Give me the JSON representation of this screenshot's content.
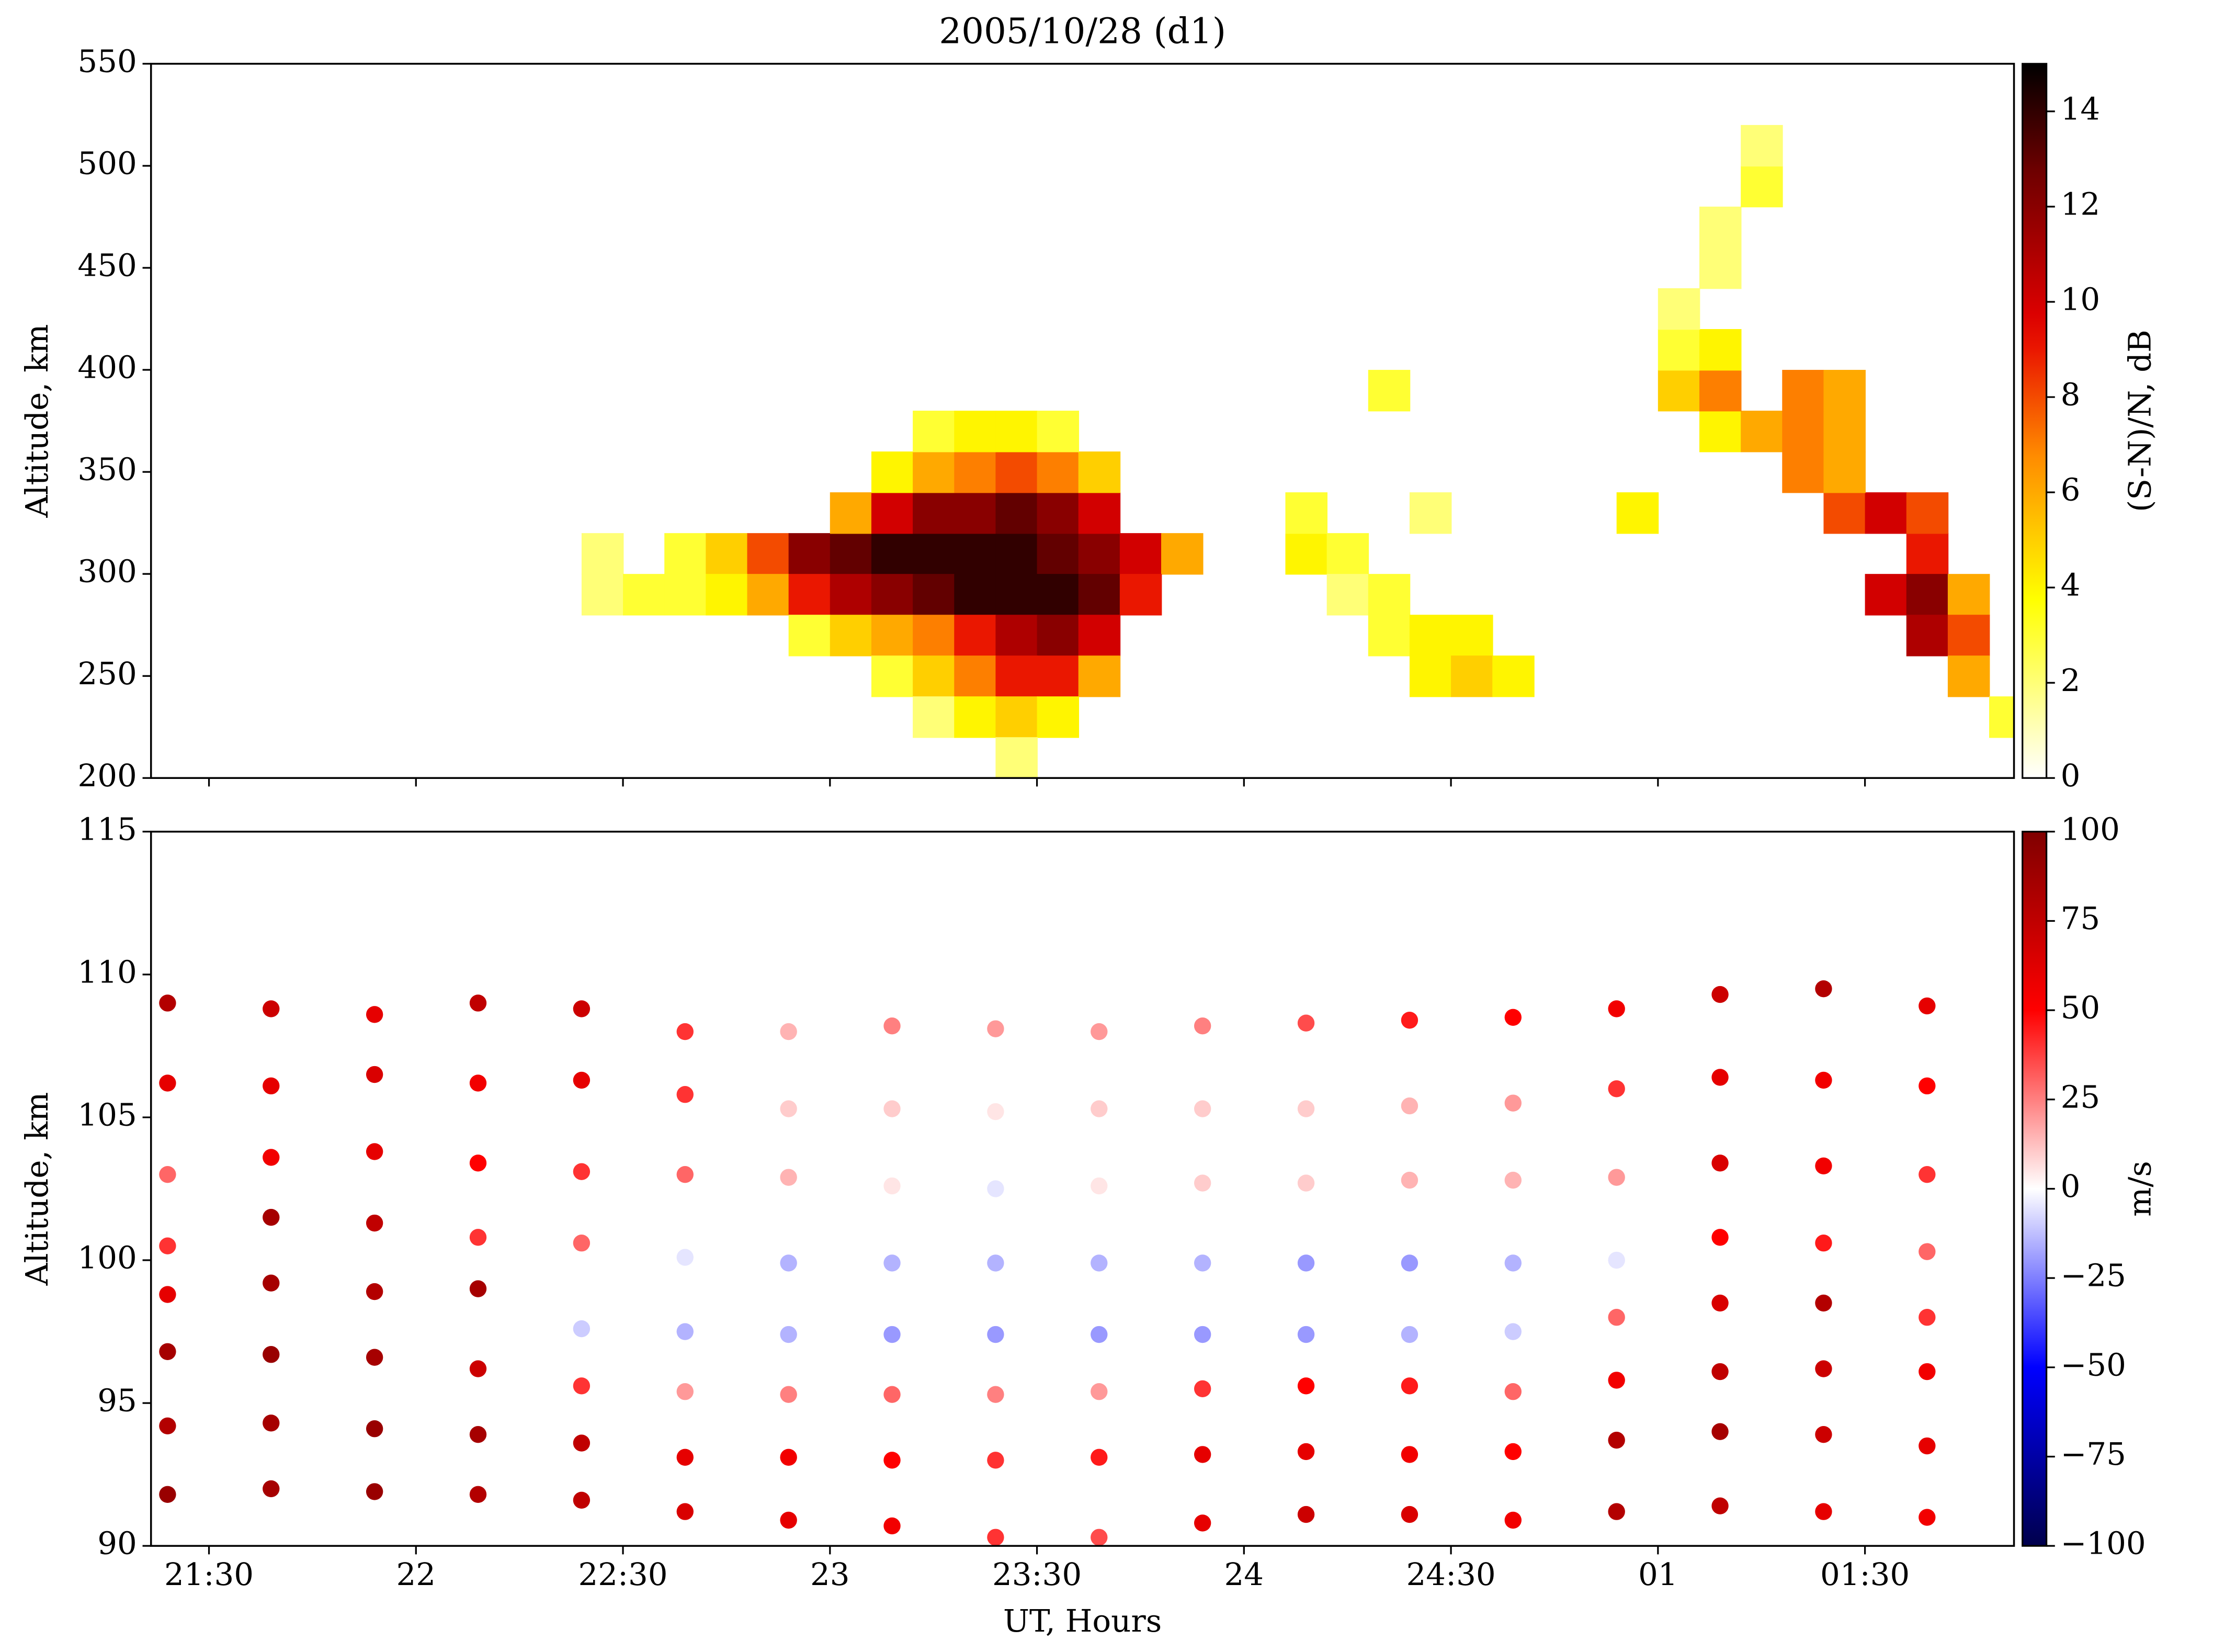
{
  "chart_data": [
    {
      "type": "heatmap",
      "title": "2005/10/28 (d1)",
      "ylabel": "Altitude, km",
      "xlim": [
        21.36,
        25.86
      ],
      "ylim": [
        200,
        550
      ],
      "yticks": [
        200,
        250,
        300,
        350,
        400,
        450,
        500,
        550
      ],
      "x": [
        22.4,
        22.6,
        22.7,
        22.8,
        22.9,
        23.0,
        23.1,
        23.2,
        23.3,
        23.4,
        23.5,
        23.6,
        23.7,
        23.8,
        24.1,
        24.2,
        25.6,
        22.4,
        22.5,
        22.6,
        22.7,
        22.8,
        22.9,
        23.0,
        23.1,
        23.2,
        23.3,
        23.4,
        23.5,
        23.6,
        23.7,
        24.2,
        24.3,
        25.5,
        25.6,
        25.7,
        23.0,
        23.1,
        23.2,
        23.3,
        23.4,
        23.5,
        23.6,
        24.1,
        24.4,
        24.9,
        25.4,
        25.5,
        25.6,
        23.1,
        23.2,
        23.3,
        23.4,
        23.5,
        23.6,
        25.3,
        25.4,
        23.2,
        23.3,
        23.4,
        23.5,
        25.1,
        25.2,
        25.3,
        25.4,
        22.9,
        23.0,
        23.1,
        23.2,
        23.3,
        23.4,
        23.5,
        23.6,
        24.3,
        24.4,
        24.5,
        25.6,
        25.7,
        23.1,
        23.2,
        23.3,
        23.4,
        23.5,
        23.6,
        24.4,
        24.5,
        24.6,
        25.7,
        23.2,
        23.3,
        23.4,
        23.5,
        25.8,
        23.4,
        24.3,
        25.0,
        25.1,
        25.3,
        25.4,
        25.0,
        25.1,
        25.0,
        25.1,
        25.1,
        25.2,
        25.2
      ],
      "y": [
        300,
        300,
        300,
        300,
        300,
        300,
        300,
        300,
        300,
        300,
        300,
        300,
        300,
        300,
        300,
        300,
        300,
        280,
        280,
        280,
        280,
        280,
        280,
        280,
        280,
        280,
        280,
        280,
        280,
        280,
        280,
        280,
        280,
        280,
        280,
        280,
        320,
        320,
        320,
        320,
        320,
        320,
        320,
        320,
        320,
        320,
        320,
        320,
        320,
        340,
        340,
        340,
        340,
        340,
        340,
        340,
        340,
        360,
        360,
        360,
        360,
        360,
        360,
        360,
        360,
        260,
        260,
        260,
        260,
        260,
        260,
        260,
        260,
        260,
        260,
        260,
        260,
        260,
        240,
        240,
        240,
        240,
        240,
        240,
        240,
        240,
        240,
        240,
        220,
        220,
        220,
        220,
        220,
        200,
        380,
        380,
        380,
        380,
        380,
        400,
        400,
        420,
        440,
        460,
        480,
        500
      ],
      "values": [
        2,
        3,
        5,
        8,
        12,
        13,
        14,
        14,
        14,
        14,
        13,
        12,
        10,
        6,
        4,
        3,
        9,
        2,
        3,
        3,
        4,
        6,
        9,
        11,
        12,
        13,
        14,
        14,
        14,
        13,
        9,
        2,
        3,
        10,
        12,
        6,
        6,
        10,
        12,
        12,
        13,
        12,
        10,
        3,
        2,
        4,
        8,
        10,
        8,
        4,
        6,
        7,
        8,
        7,
        5,
        7,
        6,
        3,
        4,
        4,
        3,
        4,
        6,
        7,
        6,
        3,
        5,
        6,
        7,
        9,
        11,
        12,
        10,
        3,
        4,
        4,
        11,
        8,
        3,
        5,
        7,
        9,
        9,
        6,
        4,
        5,
        4,
        6,
        2,
        4,
        5,
        4,
        3,
        2,
        3,
        5,
        7,
        7,
        6,
        3,
        4,
        2,
        2,
        2,
        3,
        2
      ],
      "colorbar": {
        "label": "(S-N)/N, dB",
        "lim": [
          0,
          15
        ],
        "ticks": [
          0,
          2,
          4,
          6,
          8,
          10,
          12,
          14
        ],
        "colormap": "hot_r"
      }
    },
    {
      "type": "scatter",
      "ylabel": "Altitude, km",
      "xlabel": "UT, Hours",
      "xlim": [
        21.36,
        25.86
      ],
      "ylim": [
        90,
        115
      ],
      "yticks": [
        90,
        95,
        100,
        105,
        110,
        115
      ],
      "xticks": [
        {
          "value": 21.5,
          "label": "21:30"
        },
        22,
        {
          "value": 22.5,
          "label": "22:30"
        },
        23,
        {
          "value": 23.5,
          "label": "23:30"
        },
        24,
        {
          "value": 24.5,
          "label": "24:30"
        },
        {
          "value": 25,
          "label": "01"
        },
        {
          "value": 25.5,
          "label": "01:30"
        }
      ],
      "x": [
        21.4,
        21.65,
        21.9,
        22.15,
        22.4,
        22.65,
        22.9,
        23.15,
        23.4,
        23.65,
        23.9,
        24.15,
        24.4,
        24.65,
        24.9,
        25.15,
        25.4,
        25.65,
        21.4,
        21.65,
        21.9,
        22.15,
        22.4,
        22.65,
        22.9,
        23.15,
        23.4,
        23.65,
        23.9,
        24.15,
        24.4,
        24.65,
        24.9,
        25.15,
        25.4,
        25.65,
        21.4,
        21.65,
        21.9,
        22.15,
        22.4,
        22.65,
        22.9,
        23.15,
        23.4,
        23.65,
        23.9,
        24.15,
        24.4,
        24.65,
        24.9,
        25.15,
        25.4,
        25.65,
        21.4,
        21.65,
        21.9,
        22.15,
        22.4,
        22.65,
        22.9,
        23.15,
        23.4,
        23.65,
        23.9,
        24.15,
        24.4,
        24.65,
        24.9,
        25.15,
        25.4,
        25.65,
        21.4,
        21.65,
        21.9,
        22.15,
        22.4,
        22.65,
        22.9,
        23.15,
        23.4,
        23.65,
        23.9,
        24.15,
        24.4,
        24.65,
        24.9,
        25.15,
        25.4,
        25.65,
        21.4,
        21.65,
        21.9,
        22.15,
        22.4,
        22.65,
        22.9,
        23.15,
        23.4,
        23.65,
        23.9,
        24.15,
        24.4,
        24.65,
        24.9,
        25.15,
        25.4,
        25.65,
        21.4,
        21.65,
        21.9,
        22.15,
        22.4,
        22.65,
        22.9,
        23.15,
        23.4,
        23.65,
        23.9,
        24.15,
        24.4,
        24.65,
        24.9,
        25.15,
        25.4,
        25.65,
        21.4,
        21.65,
        21.9,
        22.15,
        22.4,
        22.65,
        22.9,
        23.15,
        23.4,
        23.65,
        23.9,
        24.15,
        24.4,
        24.65,
        24.9,
        25.15,
        25.4,
        25.65
      ],
      "y": [
        109,
        108.8,
        108.6,
        109,
        108.8,
        108,
        108,
        108.2,
        108.1,
        108,
        108.2,
        108.3,
        108.4,
        108.5,
        108.8,
        109.3,
        109.5,
        108.9,
        106.2,
        106.1,
        106.5,
        106.2,
        106.3,
        105.8,
        105.3,
        105.3,
        105.2,
        105.3,
        105.3,
        105.3,
        105.4,
        105.5,
        106,
        106.4,
        106.3,
        106.1,
        103,
        103.6,
        103.8,
        103.4,
        103.1,
        103,
        102.9,
        102.6,
        102.5,
        102.6,
        102.7,
        102.7,
        102.8,
        102.8,
        102.9,
        103.4,
        103.3,
        103,
        100.5,
        101.5,
        101.3,
        100.8,
        100.6,
        100.1,
        99.9,
        99.9,
        99.9,
        99.9,
        99.9,
        99.9,
        99.9,
        99.9,
        100,
        100.8,
        100.6,
        100.3,
        98.8,
        99.2,
        98.9,
        99,
        97.6,
        97.5,
        97.4,
        97.4,
        97.4,
        97.4,
        97.4,
        97.4,
        97.4,
        97.5,
        98,
        98.5,
        98.5,
        98,
        96.8,
        96.7,
        96.6,
        96.2,
        95.6,
        95.4,
        95.3,
        95.3,
        95.3,
        95.4,
        95.5,
        95.6,
        95.6,
        95.4,
        95.8,
        96.1,
        96.2,
        96.1,
        94.2,
        94.3,
        94.1,
        93.9,
        93.6,
        93.1,
        93.1,
        93,
        93,
        93.1,
        93.2,
        93.3,
        93.2,
        93.3,
        93.7,
        94,
        93.9,
        93.5,
        91.8,
        92,
        91.9,
        91.8,
        91.6,
        91.2,
        90.9,
        90.7,
        90.3,
        90.3,
        90.8,
        91.1,
        91.1,
        90.9,
        91.2,
        91.4,
        91.2,
        91
      ],
      "values": [
        80,
        70,
        60,
        75,
        70,
        40,
        15,
        25,
        20,
        20,
        25,
        35,
        45,
        50,
        55,
        70,
        80,
        60,
        60,
        60,
        65,
        55,
        60,
        40,
        10,
        10,
        5,
        10,
        10,
        10,
        15,
        20,
        40,
        60,
        55,
        50,
        30,
        55,
        60,
        50,
        40,
        30,
        15,
        5,
        -5,
        5,
        10,
        10,
        15,
        15,
        20,
        65,
        55,
        40,
        40,
        85,
        75,
        40,
        30,
        -5,
        -15,
        -15,
        -15,
        -15,
        -15,
        -20,
        -20,
        -15,
        -5,
        50,
        45,
        30,
        60,
        85,
        80,
        85,
        -10,
        -15,
        -15,
        -20,
        -20,
        -20,
        -20,
        -20,
        -15,
        -10,
        30,
        65,
        80,
        40,
        85,
        90,
        85,
        70,
        40,
        20,
        25,
        30,
        25,
        20,
        40,
        50,
        45,
        30,
        55,
        75,
        70,
        55,
        80,
        85,
        90,
        85,
        75,
        60,
        55,
        50,
        40,
        45,
        60,
        60,
        55,
        50,
        80,
        85,
        70,
        60,
        90,
        85,
        90,
        80,
        75,
        65,
        60,
        55,
        40,
        35,
        60,
        70,
        65,
        55,
        80,
        75,
        60,
        55
      ],
      "colorbar": {
        "label": "m/s",
        "lim": [
          -100,
          100
        ],
        "colormap": "seismic",
        "ticks": [
          {
            "value": -100,
            "label": "−100"
          },
          {
            "value": -75,
            "label": "−75"
          },
          {
            "value": -50,
            "label": "−50"
          },
          {
            "value": -25,
            "label": "−25"
          },
          0,
          25,
          50,
          75,
          100
        ]
      }
    }
  ]
}
